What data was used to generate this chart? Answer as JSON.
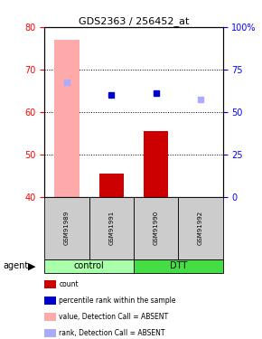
{
  "title": "GDS2363 / 256452_at",
  "samples": [
    "GSM91989",
    "GSM91991",
    "GSM91990",
    "GSM91992"
  ],
  "groups": [
    "control",
    "control",
    "DTT",
    "DTT"
  ],
  "ylim_left": [
    40,
    80
  ],
  "ylim_right": [
    0,
    100
  ],
  "yticks_left": [
    40,
    50,
    60,
    70,
    80
  ],
  "yticks_right": [
    0,
    25,
    50,
    75,
    100
  ],
  "bar_values": [
    40,
    45.5,
    55.5,
    40
  ],
  "bar_color": "#cc0000",
  "absent_bar_values": [
    77,
    null,
    null,
    null
  ],
  "absent_bar_color": "#ffaaaa",
  "rank_present": [
    null,
    64,
    64.5,
    null
  ],
  "rank_absent": [
    67,
    null,
    null,
    63
  ],
  "rank_present_color": "#0000cc",
  "rank_absent_color": "#aaaaff",
  "group_colors": {
    "control": "#aaffaa",
    "DTT": "#44dd44"
  },
  "legend_items": [
    {
      "label": "count",
      "color": "#cc0000"
    },
    {
      "label": "percentile rank within the sample",
      "color": "#0000cc"
    },
    {
      "label": "value, Detection Call = ABSENT",
      "color": "#ffaaaa"
    },
    {
      "label": "rank, Detection Call = ABSENT",
      "color": "#aaaaff"
    }
  ],
  "dotted_yticks": [
    50,
    60,
    70
  ],
  "bar_width": 0.55
}
